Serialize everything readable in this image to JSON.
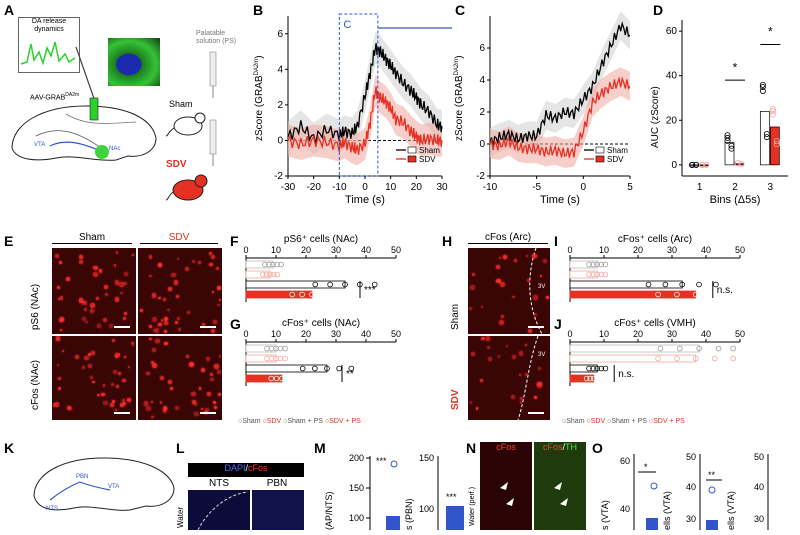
{
  "panels": {
    "A": {
      "label": "A",
      "da_box": "DA release\ndynamics",
      "sensor": "AAV-GRAB",
      "sensor_sup": "DA2m",
      "ps": "Palatable\nsolution (PS)",
      "sham": "Sham",
      "sdv": "SDV",
      "vta": "VTA",
      "nac": "NAc"
    },
    "B": {
      "label": "B",
      "inset": "C",
      "ylabel": "zScore (GRAB",
      "ylabel_sup": "DA2m",
      "xlabel": "Time (s)",
      "yticks": [
        "6",
        "4",
        "2",
        "0",
        "-2"
      ],
      "xticks": [
        "-30",
        "-20",
        "-10",
        "0",
        "10",
        "20",
        "30"
      ],
      "legend": [
        "Sham",
        "SDV"
      ]
    },
    "C": {
      "label": "C",
      "ylabel": "zScore (GRAB",
      "ylabel_sup": "DA2m",
      "xlabel": "Time (s)",
      "yticks": [
        "6",
        "4",
        "2",
        "0",
        "-2"
      ],
      "xticks": [
        "-10",
        "-5",
        "0",
        "5"
      ],
      "legend": [
        "Sham",
        "SDV"
      ]
    },
    "D": {
      "label": "D",
      "ylabel": "AUC (zScore)",
      "xlabel": "Bins (Δ5s)",
      "yticks": [
        "60",
        "40",
        "20",
        "0"
      ],
      "xticks": [
        "1",
        "2",
        "3"
      ],
      "sig": [
        "*",
        "*"
      ]
    },
    "E": {
      "label": "E",
      "col1": "Sham",
      "col2": "SDV",
      "row1": "pS6 (NAc)",
      "row2": "cFos (NAc)"
    },
    "F": {
      "label": "F",
      "title": "pS6⁺ cells (NAc)",
      "ticks": [
        "0",
        "10",
        "20",
        "30",
        "40",
        "50"
      ],
      "sig": "***"
    },
    "G": {
      "label": "G",
      "title": "cFos⁺ cells (NAc)",
      "ticks": [
        "0",
        "10",
        "20",
        "30",
        "40",
        "50"
      ],
      "sig": "**"
    },
    "legendFG": [
      "Sham",
      "SDV",
      "Sham + PS",
      "SDV + PS"
    ],
    "H": {
      "label": "H",
      "title": "cFos (Arc)",
      "row1": "Sham",
      "row2": "SDV",
      "tag": "3V"
    },
    "I": {
      "label": "I",
      "title": "cFos⁺ cells (Arc)",
      "ticks": [
        "0",
        "10",
        "20",
        "30",
        "40",
        "50"
      ],
      "sig": "n.s."
    },
    "J": {
      "label": "J",
      "title": "cFos⁺ cells (VMH)",
      "ticks": [
        "0",
        "10",
        "20",
        "30",
        "40",
        "50"
      ],
      "sig": "n.s."
    },
    "legendIJ": [
      "Sham",
      "SDV",
      "Sham + PS",
      "SDV + PS"
    ],
    "K": {
      "label": "K",
      "pbn": "PBN",
      "nts": "NTS",
      "vta": "VTA"
    },
    "L": {
      "label": "L",
      "header_dapi": "DAPI",
      "header_cfos": "cFos",
      "col1": "NTS",
      "col2": "PBN",
      "row": "Water"
    },
    "M": {
      "label": "M",
      "ylabel1": "(AP/NTS)",
      "ylabel2": "s (PBN)",
      "ticks1": [
        "200",
        "150",
        "100"
      ],
      "ticks2": [
        "150",
        "100"
      ],
      "sig": [
        "***",
        "***"
      ]
    },
    "N": {
      "label": "N",
      "col1": "cFos",
      "col2": "cFos",
      "col2b": "TH",
      "row": "Water (perf.)"
    },
    "O": {
      "label": "O",
      "ylabel1": "s (VTA)",
      "ylabel2": "ells (VTA)",
      "ylabel3": "ells (VTA)",
      "ticks1": [
        "60",
        "40"
      ],
      "ticks2": [
        "50",
        "40",
        "30"
      ],
      "ticks3": [
        "50",
        "40",
        "30"
      ],
      "sig": [
        "*",
        "**"
      ]
    }
  },
  "chart_data": [
    {
      "id": "B",
      "type": "line",
      "title": "",
      "xlabel": "Time (s)",
      "ylabel": "zScore (GRAB DA2m)",
      "xlim": [
        -30,
        30
      ],
      "ylim": [
        -2,
        7
      ],
      "series": [
        {
          "name": "Sham",
          "x": [
            -30,
            -25,
            -20,
            -15,
            -10,
            -8,
            -5,
            -3,
            0,
            2,
            4,
            6,
            8,
            10,
            12,
            15,
            18,
            20,
            22,
            25,
            28,
            30
          ],
          "y": [
            0.2,
            0.8,
            0.1,
            0.6,
            0.3,
            0.5,
            0.4,
            0.8,
            2.5,
            3.8,
            5.2,
            5.0,
            4.6,
            4.2,
            3.8,
            3.2,
            2.8,
            2.4,
            2.0,
            1.6,
            0.9,
            0.8
          ]
        },
        {
          "name": "SDV",
          "x": [
            -30,
            -25,
            -20,
            -15,
            -10,
            -8,
            -5,
            -3,
            0,
            2,
            4,
            6,
            8,
            10,
            12,
            15,
            18,
            20,
            22,
            25,
            28,
            30
          ],
          "y": [
            0,
            -0.2,
            0,
            -0.1,
            -0.3,
            -0.1,
            -0.4,
            -0.5,
            -0.2,
            1.0,
            2.8,
            2.4,
            2.2,
            1.8,
            1.2,
            1.0,
            0.5,
            0.2,
            0,
            0.1,
            0,
            0
          ]
        }
      ]
    },
    {
      "id": "C",
      "type": "line",
      "title": "",
      "xlabel": "Time (s)",
      "ylabel": "zScore (GRAB DA2m)",
      "xlim": [
        -10,
        5
      ],
      "ylim": [
        -2,
        8
      ],
      "series": [
        {
          "name": "Sham",
          "x": [
            -10,
            -9,
            -8,
            -7,
            -6,
            -5,
            -4,
            -3,
            -2,
            -1,
            0,
            1,
            2,
            3,
            4,
            5
          ],
          "y": [
            0.1,
            0.4,
            0.6,
            0.3,
            0.5,
            0.5,
            1.8,
            1.6,
            2.0,
            1.9,
            2.8,
            3.6,
            5.0,
            6.2,
            7.4,
            6.8
          ]
        },
        {
          "name": "SDV",
          "x": [
            -10,
            -9,
            -8,
            -7,
            -6,
            -5,
            -4,
            -3,
            -2,
            -1,
            0,
            1,
            2,
            3,
            4,
            5
          ],
          "y": [
            0,
            -0.1,
            0.2,
            -0.2,
            -0.3,
            -0.3,
            -0.5,
            -0.4,
            -0.6,
            -0.5,
            0.8,
            2.6,
            3.2,
            3.6,
            3.9,
            3.6
          ]
        }
      ]
    },
    {
      "id": "D",
      "type": "bar",
      "title": "",
      "xlabel": "Bins (Δ5s)",
      "ylabel": "AUC (zScore)",
      "ylim": [
        -5,
        65
      ],
      "categories": [
        "1",
        "2",
        "3"
      ],
      "series": [
        {
          "name": "Sham",
          "values": [
            0,
            10,
            24
          ]
        },
        {
          "name": "SDV",
          "values": [
            0,
            0.5,
            17
          ]
        }
      ]
    },
    {
      "id": "F",
      "type": "bar",
      "title": "pS6⁺ cells (NAc)",
      "orientation": "horizontal",
      "xlim": [
        0,
        50
      ],
      "categories": [
        "Sham",
        "SDV",
        "Sham + PS",
        "SDV + PS"
      ],
      "values": [
        9,
        8,
        33,
        22
      ]
    },
    {
      "id": "G",
      "type": "bar",
      "title": "cFos⁺ cells (NAc)",
      "orientation": "horizontal",
      "xlim": [
        0,
        50
      ],
      "categories": [
        "Sham",
        "SDV",
        "Sham + PS",
        "SDV + PS"
      ],
      "values": [
        10,
        10,
        27,
        12
      ]
    },
    {
      "id": "I",
      "type": "bar",
      "title": "cFos⁺ cells (Arc)",
      "orientation": "horizontal",
      "xlim": [
        0,
        50
      ],
      "categories": [
        "Sham",
        "SDV",
        "Sham + PS",
        "SDV + PS"
      ],
      "values": [
        8,
        8,
        33,
        37
      ]
    },
    {
      "id": "J",
      "type": "bar",
      "title": "cFos⁺ cells (VMH)",
      "orientation": "horizontal",
      "xlim": [
        0,
        50
      ],
      "categories": [
        "Sham",
        "SDV",
        "Sham + PS",
        "SDV + PS"
      ],
      "values": [
        38,
        37,
        8,
        7
      ]
    }
  ],
  "colors": {
    "sham": "#000000",
    "sdv": "#e53022",
    "sdv_light": "#f1a79f",
    "shade": "#cfcfcf",
    "sensor": "#2bd12b",
    "micro": "#3a0505",
    "inset": "#3355cc"
  }
}
